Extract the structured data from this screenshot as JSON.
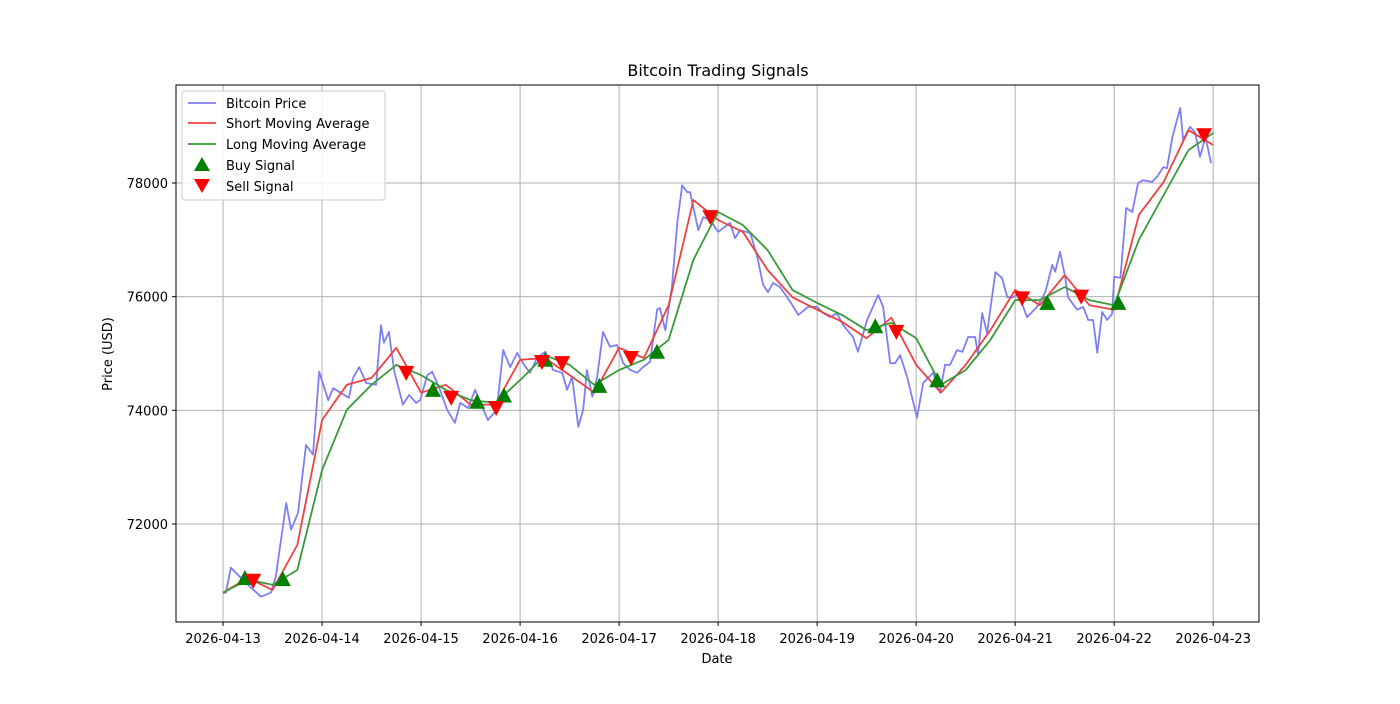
{
  "chart_data": {
    "type": "line",
    "title": "Bitcoin Trading Signals",
    "xlabel": "Date",
    "ylabel": "Price (USD)",
    "x_unit": "hours since 2026-04-13 00:00",
    "xlim_hours": [
      -11.4,
      251.1
    ],
    "ylim": [
      70275,
      79725
    ],
    "grid": true,
    "legend_position": "top-left",
    "x_ticks": [
      {
        "hours": 0,
        "label": "2026-04-13"
      },
      {
        "hours": 24,
        "label": "2026-04-14"
      },
      {
        "hours": 48,
        "label": "2026-04-15"
      },
      {
        "hours": 72,
        "label": "2026-04-16"
      },
      {
        "hours": 96,
        "label": "2026-04-17"
      },
      {
        "hours": 120,
        "label": "2026-04-18"
      },
      {
        "hours": 144,
        "label": "2026-04-19"
      },
      {
        "hours": 168,
        "label": "2026-04-20"
      },
      {
        "hours": 192,
        "label": "2026-04-21"
      },
      {
        "hours": 216,
        "label": "2026-04-22"
      },
      {
        "hours": 240,
        "label": "2026-04-23"
      }
    ],
    "y_ticks": [
      72000,
      74000,
      76000,
      78000
    ],
    "legend": [
      "Bitcoin Price",
      "Short Moving Average",
      "Long Moving Average",
      "Buy Signal",
      "Sell Signal"
    ],
    "colors": {
      "price": "#7f7ff5",
      "short": "#f04040",
      "long": "#3a9a3a",
      "buy": "#008000",
      "sell": "#ff0000"
    },
    "price": [
      [
        0,
        70790
      ],
      [
        0.7,
        70790
      ],
      [
        1.9,
        71230
      ],
      [
        5.6,
        70960
      ],
      [
        9.2,
        70720
      ],
      [
        11.6,
        70790
      ],
      [
        12.8,
        71070
      ],
      [
        15.3,
        72370
      ],
      [
        16.5,
        71900
      ],
      [
        18.2,
        72200
      ],
      [
        20.1,
        73390
      ],
      [
        21.8,
        73220
      ],
      [
        23.3,
        74680
      ],
      [
        25.5,
        74180
      ],
      [
        26.7,
        74390
      ],
      [
        30.5,
        74220
      ],
      [
        31.5,
        74570
      ],
      [
        33.0,
        74760
      ],
      [
        34.7,
        74480
      ],
      [
        37.1,
        74450
      ],
      [
        38.3,
        75500
      ],
      [
        39.0,
        75190
      ],
      [
        40.2,
        75380
      ],
      [
        41.5,
        74680
      ],
      [
        43.6,
        74100
      ],
      [
        45.1,
        74270
      ],
      [
        46.8,
        74130
      ],
      [
        47.8,
        74180
      ],
      [
        49.5,
        74620
      ],
      [
        50.7,
        74680
      ],
      [
        52.6,
        74360
      ],
      [
        54.3,
        74010
      ],
      [
        56.2,
        73780
      ],
      [
        57.5,
        74130
      ],
      [
        59.4,
        74040
      ],
      [
        61.1,
        74360
      ],
      [
        62.8,
        74060
      ],
      [
        64.2,
        73830
      ],
      [
        65.9,
        73970
      ],
      [
        66.7,
        74240
      ],
      [
        67.9,
        75060
      ],
      [
        69.6,
        74760
      ],
      [
        71.3,
        75010
      ],
      [
        72.7,
        74830
      ],
      [
        74.4,
        74660
      ],
      [
        76.1,
        74920
      ],
      [
        78.1,
        75030
      ],
      [
        80.0,
        74710
      ],
      [
        82.2,
        74660
      ],
      [
        83.4,
        74360
      ],
      [
        84.6,
        74590
      ],
      [
        86.1,
        73710
      ],
      [
        87.3,
        74010
      ],
      [
        88.2,
        74710
      ],
      [
        89.5,
        74240
      ],
      [
        90.7,
        74590
      ],
      [
        92.1,
        75380
      ],
      [
        93.8,
        75120
      ],
      [
        95.5,
        75150
      ],
      [
        97.0,
        74830
      ],
      [
        98.7,
        74710
      ],
      [
        100.4,
        74660
      ],
      [
        101.8,
        74760
      ],
      [
        103.5,
        74850
      ],
      [
        105.2,
        75770
      ],
      [
        105.9,
        75800
      ],
      [
        107.2,
        75410
      ],
      [
        108.8,
        76170
      ],
      [
        110.1,
        77300
      ],
      [
        111.3,
        77960
      ],
      [
        112.5,
        77840
      ],
      [
        113.2,
        77840
      ],
      [
        115.2,
        77170
      ],
      [
        116.4,
        77400
      ],
      [
        118.1,
        77350
      ],
      [
        120.0,
        77140
      ],
      [
        122.9,
        77300
      ],
      [
        124.1,
        77030
      ],
      [
        125.3,
        77170
      ],
      [
        127.8,
        77120
      ],
      [
        129.5,
        76700
      ],
      [
        130.9,
        76210
      ],
      [
        132.1,
        76080
      ],
      [
        133.3,
        76240
      ],
      [
        135.0,
        76170
      ],
      [
        137.5,
        75910
      ],
      [
        139.4,
        75680
      ],
      [
        141.8,
        75820
      ],
      [
        144.0,
        75820
      ],
      [
        145.5,
        75710
      ],
      [
        147.2,
        75640
      ],
      [
        148.8,
        75710
      ],
      [
        150.3,
        75500
      ],
      [
        152.7,
        75290
      ],
      [
        153.9,
        75030
      ],
      [
        156.1,
        75590
      ],
      [
        158.8,
        76030
      ],
      [
        160.0,
        75820
      ],
      [
        161.7,
        74830
      ],
      [
        162.9,
        74830
      ],
      [
        164.1,
        74970
      ],
      [
        165.8,
        74590
      ],
      [
        168.2,
        73870
      ],
      [
        169.7,
        74480
      ],
      [
        172.1,
        74660
      ],
      [
        173.8,
        74310
      ],
      [
        175.0,
        74800
      ],
      [
        176.2,
        74800
      ],
      [
        177.9,
        75060
      ],
      [
        179.2,
        75030
      ],
      [
        180.6,
        75290
      ],
      [
        182.3,
        75290
      ],
      [
        183.0,
        74970
      ],
      [
        184.0,
        75710
      ],
      [
        185.2,
        75360
      ],
      [
        187.2,
        76430
      ],
      [
        188.8,
        76330
      ],
      [
        190.1,
        75990
      ],
      [
        191.5,
        75990
      ],
      [
        192.7,
        76050
      ],
      [
        194.9,
        75640
      ],
      [
        197.3,
        75820
      ],
      [
        199.3,
        76080
      ],
      [
        201.0,
        76560
      ],
      [
        201.7,
        76440
      ],
      [
        202.9,
        76790
      ],
      [
        204.1,
        76350
      ],
      [
        204.8,
        75990
      ],
      [
        207.0,
        75770
      ],
      [
        208.5,
        75820
      ],
      [
        209.7,
        75590
      ],
      [
        210.9,
        75590
      ],
      [
        211.9,
        75010
      ],
      [
        213.1,
        75730
      ],
      [
        214.3,
        75590
      ],
      [
        215.5,
        75700
      ],
      [
        216.0,
        76350
      ],
      [
        217.5,
        76330
      ],
      [
        218.9,
        77560
      ],
      [
        220.4,
        77490
      ],
      [
        221.8,
        78000
      ],
      [
        223.0,
        78050
      ],
      [
        225.2,
        78020
      ],
      [
        226.4,
        78110
      ],
      [
        227.9,
        78280
      ],
      [
        228.8,
        78260
      ],
      [
        230.1,
        78810
      ],
      [
        232.0,
        79320
      ],
      [
        232.7,
        78760
      ],
      [
        234.4,
        78990
      ],
      [
        235.6,
        78890
      ],
      [
        236.8,
        78460
      ],
      [
        238.1,
        78810
      ],
      [
        239.5,
        78350
      ]
    ],
    "short_ma": [
      [
        0,
        70790
      ],
      [
        6,
        71050
      ],
      [
        12,
        70840
      ],
      [
        18,
        71630
      ],
      [
        24,
        73830
      ],
      [
        30,
        74450
      ],
      [
        36,
        74570
      ],
      [
        42,
        75100
      ],
      [
        48,
        74310
      ],
      [
        54,
        74450
      ],
      [
        60,
        74100
      ],
      [
        66,
        74100
      ],
      [
        72,
        74890
      ],
      [
        78,
        74920
      ],
      [
        84,
        74620
      ],
      [
        90,
        74310
      ],
      [
        96,
        75100
      ],
      [
        102,
        74920
      ],
      [
        108,
        75850
      ],
      [
        114,
        77700
      ],
      [
        120,
        77350
      ],
      [
        126,
        77140
      ],
      [
        132,
        76470
      ],
      [
        138,
        75990
      ],
      [
        144,
        75770
      ],
      [
        150,
        75560
      ],
      [
        156,
        75270
      ],
      [
        162,
        75630
      ],
      [
        168,
        74800
      ],
      [
        174,
        74310
      ],
      [
        180,
        74800
      ],
      [
        186,
        75410
      ],
      [
        192,
        76120
      ],
      [
        198,
        75850
      ],
      [
        204,
        76380
      ],
      [
        210,
        75850
      ],
      [
        216,
        75770
      ],
      [
        222,
        77440
      ],
      [
        228,
        78020
      ],
      [
        234,
        78930
      ],
      [
        240,
        78670
      ]
    ],
    "long_ma": [
      [
        0,
        70790
      ],
      [
        6,
        71020
      ],
      [
        12,
        70930
      ],
      [
        18,
        71190
      ],
      [
        24,
        72950
      ],
      [
        30,
        74010
      ],
      [
        36,
        74450
      ],
      [
        42,
        74800
      ],
      [
        48,
        74620
      ],
      [
        54,
        74360
      ],
      [
        60,
        74180
      ],
      [
        66,
        74130
      ],
      [
        72,
        74530
      ],
      [
        78,
        74970
      ],
      [
        84,
        74800
      ],
      [
        90,
        74450
      ],
      [
        96,
        74710
      ],
      [
        102,
        74890
      ],
      [
        108,
        75240
      ],
      [
        114,
        76650
      ],
      [
        120,
        77490
      ],
      [
        126,
        77260
      ],
      [
        132,
        76820
      ],
      [
        138,
        76120
      ],
      [
        144,
        75890
      ],
      [
        150,
        75680
      ],
      [
        156,
        75410
      ],
      [
        162,
        75540
      ],
      [
        168,
        75270
      ],
      [
        174,
        74450
      ],
      [
        180,
        74710
      ],
      [
        186,
        75240
      ],
      [
        192,
        75940
      ],
      [
        198,
        75940
      ],
      [
        204,
        76170
      ],
      [
        210,
        75940
      ],
      [
        216,
        75850
      ],
      [
        222,
        77000
      ],
      [
        228,
        77790
      ],
      [
        234,
        78580
      ],
      [
        240,
        78880
      ]
    ],
    "buy_signals": [
      [
        5.3,
        71050
      ],
      [
        14.5,
        71030
      ],
      [
        50.9,
        74360
      ],
      [
        61.6,
        74150
      ],
      [
        68.1,
        74260
      ],
      [
        78.1,
        74890
      ],
      [
        91.2,
        74430
      ],
      [
        105.2,
        75030
      ],
      [
        158.1,
        75480
      ],
      [
        173.1,
        74530
      ],
      [
        199.8,
        75890
      ],
      [
        217.0,
        75890
      ]
    ],
    "sell_signals": [
      [
        7.3,
        71000
      ],
      [
        44.4,
        74660
      ],
      [
        55.3,
        74220
      ],
      [
        66.2,
        74040
      ],
      [
        77.3,
        74850
      ],
      [
        82.2,
        74830
      ],
      [
        98.9,
        74920
      ],
      [
        118.1,
        77400
      ],
      [
        163.2,
        75380
      ],
      [
        193.7,
        75970
      ],
      [
        208.0,
        76000
      ],
      [
        237.8,
        78840
      ]
    ]
  }
}
